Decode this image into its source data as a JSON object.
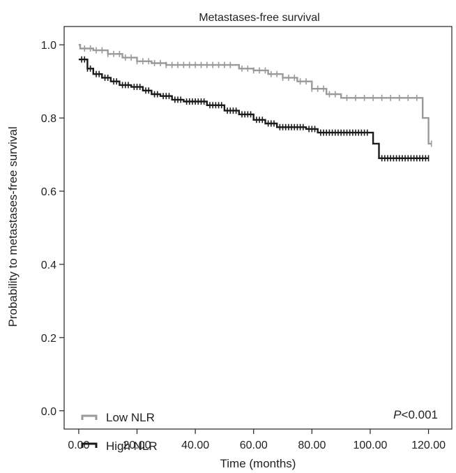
{
  "chart_data": {
    "type": "line",
    "title": "Metastases-free survival",
    "xlabel": "Time (months)",
    "ylabel": "Probability to metastases-free survival",
    "xlim": [
      -5,
      128
    ],
    "ylim": [
      -0.05,
      1.05
    ],
    "x_ticks": [
      0,
      20,
      40,
      60,
      80,
      100,
      120
    ],
    "x_tick_labels": [
      "0.00",
      "20.00",
      "40.00",
      "60.00",
      "80.00",
      "100.00",
      "120.00"
    ],
    "y_ticks": [
      0.0,
      0.2,
      0.4,
      0.6,
      0.8,
      1.0
    ],
    "y_tick_labels": [
      "0.0",
      "0.2",
      "0.4",
      "0.6",
      "0.8",
      "1.0"
    ],
    "grid": false,
    "legend_position": "bottom-left",
    "annotation_prefix": "P",
    "annotation_suffix": "<0.001",
    "series": [
      {
        "name": "Low NLR",
        "color": "#9a9a9a",
        "steps": [
          [
            0,
            1.0
          ],
          [
            0.5,
            0.99
          ],
          [
            5,
            0.985
          ],
          [
            10,
            0.975
          ],
          [
            15,
            0.965
          ],
          [
            20,
            0.955
          ],
          [
            25,
            0.95
          ],
          [
            30,
            0.945
          ],
          [
            50,
            0.945
          ],
          [
            55,
            0.935
          ],
          [
            60,
            0.93
          ],
          [
            65,
            0.92
          ],
          [
            70,
            0.91
          ],
          [
            75,
            0.9
          ],
          [
            80,
            0.88
          ],
          [
            85,
            0.865
          ],
          [
            90,
            0.855
          ],
          [
            117,
            0.855
          ],
          [
            118,
            0.8
          ],
          [
            120,
            0.73
          ],
          [
            121,
            0.73
          ]
        ],
        "censors": [
          2,
          4,
          6,
          8,
          10,
          12,
          14,
          16,
          18,
          20,
          22,
          24,
          26,
          28,
          30,
          32,
          34,
          36,
          38,
          40,
          42,
          44,
          46,
          48,
          50,
          52,
          56,
          58,
          60,
          62,
          64,
          66,
          68,
          70,
          72,
          74,
          76,
          78,
          80,
          82,
          84,
          86,
          88,
          92,
          95,
          98,
          101,
          104,
          107,
          110,
          113,
          116,
          121
        ]
      },
      {
        "name": "High NLR",
        "color": "#1a1a1a",
        "steps": [
          [
            0,
            0.96
          ],
          [
            3,
            0.935
          ],
          [
            5,
            0.92
          ],
          [
            8,
            0.91
          ],
          [
            11,
            0.9
          ],
          [
            14,
            0.89
          ],
          [
            18,
            0.885
          ],
          [
            22,
            0.875
          ],
          [
            25,
            0.865
          ],
          [
            28,
            0.86
          ],
          [
            32,
            0.85
          ],
          [
            36,
            0.845
          ],
          [
            44,
            0.835
          ],
          [
            50,
            0.82
          ],
          [
            55,
            0.81
          ],
          [
            60,
            0.795
          ],
          [
            64,
            0.785
          ],
          [
            68,
            0.775
          ],
          [
            78,
            0.77
          ],
          [
            82,
            0.76
          ],
          [
            100,
            0.76
          ],
          [
            101,
            0.73
          ],
          [
            103,
            0.69
          ],
          [
            120,
            0.69
          ]
        ],
        "censors": [
          1,
          2,
          3,
          4,
          6,
          7,
          9,
          10,
          12,
          13,
          15,
          16,
          17,
          19,
          20,
          21,
          23,
          24,
          26,
          27,
          29,
          30,
          31,
          33,
          34,
          35,
          37,
          38,
          39,
          40,
          41,
          42,
          43,
          45,
          46,
          47,
          48,
          49,
          51,
          52,
          53,
          54,
          56,
          57,
          58,
          59,
          61,
          62,
          63,
          65,
          66,
          67,
          69,
          70,
          71,
          72,
          73,
          74,
          75,
          76,
          77,
          79,
          80,
          81,
          83,
          84,
          85,
          86,
          87,
          88,
          89,
          90,
          91,
          92,
          93,
          94,
          95,
          96,
          97,
          98,
          99,
          104,
          105,
          106,
          107,
          108,
          109,
          110,
          111,
          112,
          113,
          114,
          115,
          116,
          117,
          118,
          119,
          120
        ]
      }
    ]
  }
}
